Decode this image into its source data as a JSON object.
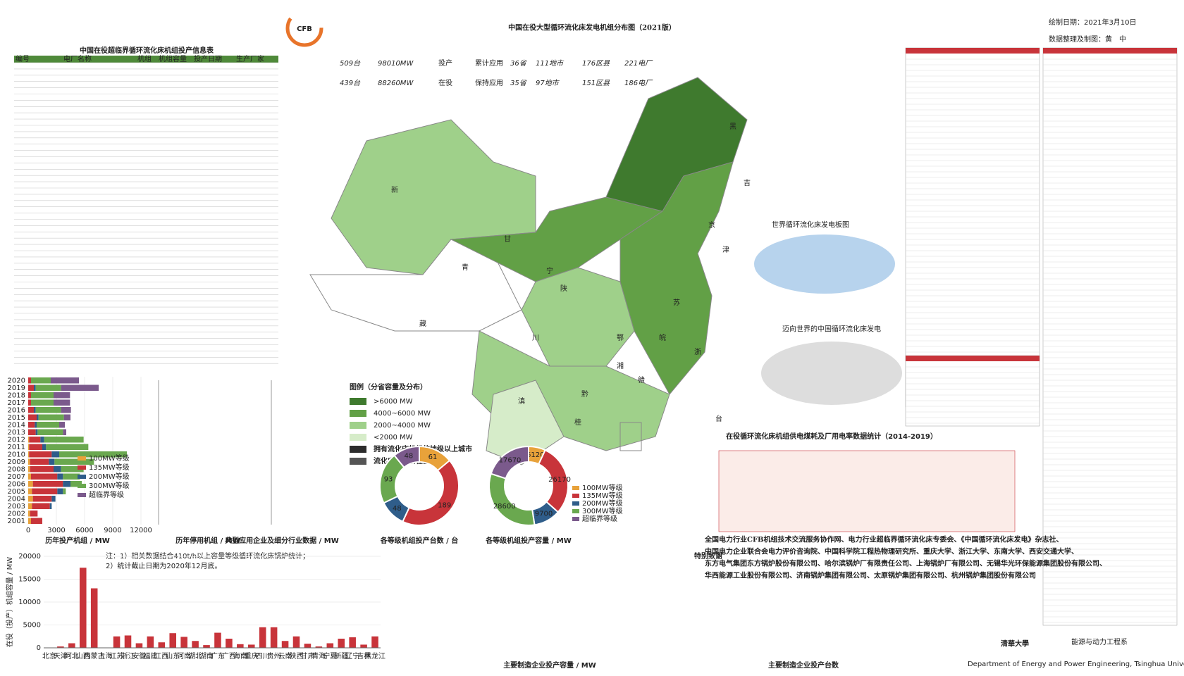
{
  "header": {
    "logo": "CFB",
    "title": "中国在役大型循环流化床发电机组分布图（2021版）",
    "date": "绘制日期：2021年3月10日",
    "author": "数据整理及制图：黄　中"
  },
  "stats": {
    "rows": [
      [
        "509台",
        "98010MW",
        "投产",
        "累计应用",
        "36省",
        "111地市",
        "176区县",
        "221电厂"
      ],
      [
        "439台",
        "88260MW",
        "在役",
        "保持应用",
        "35省",
        "97地市",
        "151区县",
        "186电厂"
      ]
    ]
  },
  "table": {
    "title": "中国在役超临界循环流化床机组投产信息表",
    "columns": [
      "编号",
      "电厂名称",
      "机组",
      "机组容量",
      "投产日期",
      "生产厂家"
    ]
  },
  "legend": {
    "title": "图例（分省容量及分布）",
    "items": [
      {
        "label": ">6000 MW",
        "color": "#3f7a2e"
      },
      {
        "label": "4000~6000 MW",
        "color": "#62a046"
      },
      {
        "label": "2000~4000 MW",
        "color": "#9fd08a"
      },
      {
        "label": "<2000 MW",
        "color": "#d6ecc9"
      }
    ],
    "marks": [
      {
        "label": "拥有流化床机组的地级以上城市",
        "color": "#2c2c2c"
      },
      {
        "label": "流化床机组所在区县",
        "color": "#555555"
      }
    ]
  },
  "map": {
    "labels": [
      "新",
      "藏",
      "青",
      "甘",
      "川",
      "滇",
      "黑",
      "吉",
      "京",
      "津",
      "宁",
      "陕",
      "鄂",
      "湘",
      "黔",
      "桂",
      "苏",
      "皖",
      "赣",
      "浙",
      "台"
    ],
    "world_title": "世界循环流化床发电板图",
    "world_title2": "迈向世界的中国循环流化床发电"
  },
  "captions": {
    "stop": "历年停用机组 / MW",
    "industry": "典型应用企业及细分行业数据 / MW",
    "notes": [
      "注：1）相关数据结合410t/h以上容量等级循环流化床锅炉统计；",
      "2）统计截止日期为2020年12月底。"
    ],
    "emission": "在役循环流化床机组供电煤耗及厂用电率数据统计（2014-2019）",
    "maker_cap": "主要制造企业投产容量 / MW",
    "maker_units": "主要制造企业投产台数"
  },
  "thanks": {
    "label": "特别致谢",
    "lines": [
      "全国电力行业CFB机组技术交流服务协作网、电力行业超临界循环流化床专委会、《中国循环流化床发电》杂志社、",
      "中国电力企业联合会电力评价咨询院、中国科学院工程热物理研究所、重庆大学、浙江大学、东南大学、西安交通大学、",
      "东方电气集团东方锅炉股份有限公司、哈尔滨锅炉厂有限责任公司、上海锅炉厂有限公司、无锡华光环保能源集团股份有限公司、",
      "华西能源工业股份有限公司、济南锅炉集团有限公司、太原锅炉集团有限公司、杭州锅炉集团股份有限公司"
    ]
  },
  "footer": {
    "school": "清華大學",
    "dept": "能源与动力工程系",
    "dept_en": "Department of Energy and Power Engineering, Tsinghua University"
  },
  "chart_data": [
    {
      "type": "hbar_stacked",
      "title": "历年投产机组 / MW",
      "categories": [
        "2001",
        "2002",
        "2003",
        "2004",
        "2005",
        "2006",
        "2007",
        "2008",
        "2009",
        "2010",
        "2011",
        "2012",
        "2013",
        "2014",
        "2015",
        "2016",
        "2017",
        "2018",
        "2019",
        "2020"
      ],
      "series": [
        {
          "name": "100MW等级",
          "color": "#e8a23a",
          "values": [
            300,
            200,
            400,
            500,
            400,
            500,
            300,
            200,
            200,
            100,
            100,
            100,
            0,
            0,
            0,
            0,
            0,
            0,
            0,
            0
          ]
        },
        {
          "name": "135MW等级",
          "color": "#c8343a",
          "values": [
            1200,
            800,
            1900,
            2000,
            2700,
            3200,
            2800,
            2500,
            2000,
            2400,
            1400,
            1200,
            800,
            700,
            900,
            600,
            300,
            300,
            600,
            300
          ]
        },
        {
          "name": "200MW等级",
          "color": "#2f5d8a",
          "values": [
            0,
            0,
            200,
            400,
            600,
            800,
            600,
            800,
            600,
            800,
            400,
            400,
            200,
            200,
            200,
            200,
            0,
            0,
            200,
            0
          ]
        },
        {
          "name": "300MW等级",
          "color": "#6aa84f",
          "values": [
            0,
            0,
            0,
            0,
            300,
            1200,
            1800,
            2400,
            4200,
            7200,
            4500,
            4200,
            2700,
            2400,
            2700,
            2700,
            2400,
            2400,
            2700,
            2100
          ]
        },
        {
          "name": "超临界等级",
          "color": "#7b5a8c",
          "values": [
            0,
            0,
            0,
            0,
            0,
            0,
            0,
            0,
            0,
            0,
            0,
            0,
            350,
            600,
            700,
            1050,
            1750,
            1750,
            4000,
            3000
          ]
        }
      ],
      "xlim": [
        0,
        12000
      ],
      "xticks": [
        0,
        3000,
        6000,
        9000,
        12000
      ]
    },
    {
      "type": "donut",
      "title": "各等级机组投产台数 / 台",
      "categories": [
        "100MW等级",
        "135MW等级",
        "200MW等级",
        "300MW等级",
        "超临界等级"
      ],
      "colors": [
        "#e8a23a",
        "#c8343a",
        "#2f5d8a",
        "#6aa84f",
        "#7b5a8c"
      ],
      "values": [
        61,
        189,
        48,
        93,
        48
      ]
    },
    {
      "type": "donut",
      "title": "各等级机组投产容量 / MW",
      "categories": [
        "100MW等级",
        "135MW等级",
        "200MW等级",
        "300MW等级",
        "超临界等级"
      ],
      "colors": [
        "#e8a23a",
        "#c8343a",
        "#2f5d8a",
        "#6aa84f",
        "#7b5a8c"
      ],
      "values": [
        6120,
        26170,
        9700,
        28600,
        17670
      ]
    },
    {
      "type": "bar",
      "y_label": "在役（投产）机组容量 / MW",
      "color": "#c8343a",
      "categories": [
        "北京",
        "天津",
        "河北",
        "山西",
        "内蒙古",
        "上海",
        "江苏",
        "浙江",
        "安徽",
        "福建",
        "江西",
        "山东",
        "河南",
        "湖北",
        "湖南",
        "广东",
        "广西",
        "海南",
        "重庆",
        "四川",
        "贵州",
        "云南",
        "陕西",
        "甘肃",
        "青海",
        "宁夏",
        "新疆",
        "辽宁",
        "吉林",
        "黑龙江"
      ],
      "values": [
        0,
        300,
        1000,
        17500,
        13000,
        0,
        2500,
        2700,
        1000,
        2500,
        1200,
        3200,
        2400,
        1500,
        600,
        3300,
        2000,
        800,
        700,
        4500,
        4500,
        1500,
        2500,
        900,
        300,
        1000,
        2000,
        2300,
        700,
        2500
      ],
      "ylim": [
        0,
        20000
      ],
      "yticks": [
        0,
        5000,
        10000,
        15000,
        20000
      ]
    }
  ]
}
